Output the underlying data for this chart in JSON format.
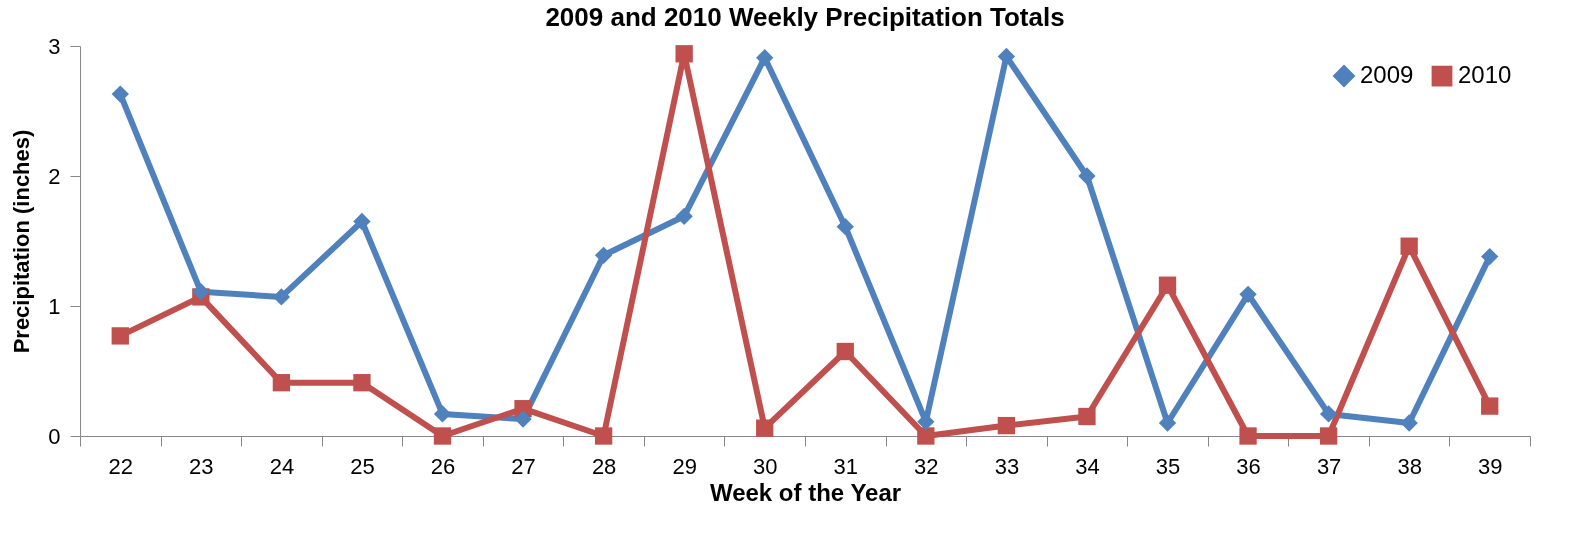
{
  "chart_data": {
    "type": "line",
    "title": "2009 and 2010 Weekly Precipitation Totals",
    "xlabel": "Week of the Year",
    "ylabel": "Precipitation (inches)",
    "categories": [
      "22",
      "23",
      "24",
      "25",
      "26",
      "27",
      "28",
      "29",
      "30",
      "31",
      "32",
      "33",
      "34",
      "35",
      "36",
      "37",
      "38",
      "39"
    ],
    "series": [
      {
        "name": "2009",
        "color": "#4f81bd",
        "marker": "diamond",
        "values": [
          2.63,
          1.11,
          1.07,
          1.65,
          0.17,
          0.13,
          1.39,
          1.69,
          2.91,
          1.61,
          0.11,
          2.92,
          2.0,
          0.1,
          1.09,
          0.17,
          0.1,
          1.38
        ]
      },
      {
        "name": "2010",
        "color": "#c0504d",
        "marker": "square",
        "values": [
          0.77,
          1.07,
          0.41,
          0.41,
          0,
          0.21,
          0,
          2.94,
          0.06,
          0.65,
          0,
          0.08,
          0.15,
          1.16,
          0,
          0,
          1.46,
          0.23
        ]
      }
    ],
    "ylim": [
      0,
      3
    ],
    "yticks": [
      0,
      1,
      2,
      3
    ],
    "grid": false,
    "legend": "top right"
  }
}
